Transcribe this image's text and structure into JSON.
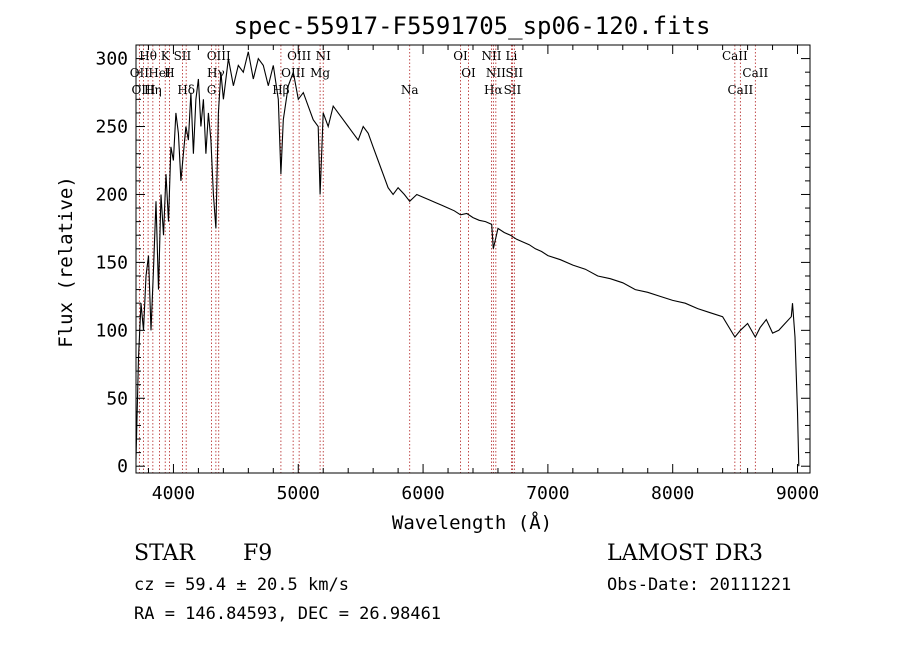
{
  "chart_data": {
    "type": "line",
    "title": "spec-55917-F5591705_sp06-120.fits",
    "xlabel": "Wavelength (Å)",
    "ylabel": "Flux (relative)",
    "xlim": [
      3700,
      9100
    ],
    "ylim": [
      -5,
      310
    ],
    "x_ticks": [
      4000,
      5000,
      6000,
      7000,
      8000,
      9000
    ],
    "y_ticks": [
      0,
      50,
      100,
      150,
      200,
      250,
      300
    ],
    "x_tick_labels": [
      "4000",
      "5000",
      "6000",
      "7000",
      "8000",
      "9000"
    ],
    "y_tick_labels": [
      "0",
      "50",
      "100",
      "150",
      "200",
      "250",
      "300"
    ],
    "series": [
      {
        "name": "flux",
        "x": [
          3700,
          3720,
          3740,
          3760,
          3780,
          3800,
          3820,
          3840,
          3860,
          3880,
          3900,
          3920,
          3940,
          3960,
          3980,
          4000,
          4020,
          4040,
          4060,
          4080,
          4100,
          4120,
          4140,
          4160,
          4180,
          4200,
          4220,
          4240,
          4260,
          4280,
          4300,
          4320,
          4340,
          4360,
          4380,
          4400,
          4440,
          4480,
          4520,
          4560,
          4600,
          4640,
          4680,
          4720,
          4760,
          4800,
          4840,
          4861,
          4880,
          4920,
          4960,
          5000,
          5040,
          5080,
          5120,
          5160,
          5175,
          5200,
          5240,
          5280,
          5320,
          5360,
          5400,
          5440,
          5480,
          5520,
          5560,
          5600,
          5640,
          5680,
          5720,
          5760,
          5800,
          5850,
          5893,
          5950,
          6000,
          6050,
          6100,
          6150,
          6200,
          6250,
          6300,
          6350,
          6400,
          6450,
          6500,
          6550,
          6563,
          6600,
          6650,
          6700,
          6750,
          6800,
          6850,
          6900,
          6950,
          7000,
          7100,
          7200,
          7300,
          7400,
          7500,
          7600,
          7700,
          7800,
          7900,
          8000,
          8100,
          8200,
          8300,
          8400,
          8498,
          8542,
          8600,
          8662,
          8700,
          8750,
          8800,
          8850,
          8900,
          8950,
          8960,
          8980,
          9000,
          9010
        ],
        "y": [
          5,
          80,
          120,
          100,
          140,
          155,
          100,
          145,
          195,
          130,
          200,
          170,
          215,
          180,
          235,
          225,
          260,
          245,
          210,
          230,
          250,
          240,
          275,
          230,
          270,
          285,
          250,
          270,
          230,
          260,
          240,
          200,
          175,
          260,
          290,
          270,
          300,
          280,
          295,
          290,
          305,
          285,
          300,
          295,
          280,
          295,
          270,
          215,
          255,
          280,
          290,
          270,
          275,
          265,
          255,
          250,
          200,
          260,
          250,
          265,
          260,
          255,
          250,
          245,
          240,
          250,
          245,
          235,
          225,
          215,
          205,
          200,
          205,
          200,
          195,
          200,
          198,
          196,
          194,
          192,
          190,
          188,
          185,
          186,
          183,
          181,
          180,
          178,
          160,
          175,
          172,
          170,
          167,
          165,
          163,
          160,
          158,
          155,
          152,
          148,
          145,
          140,
          138,
          135,
          130,
          128,
          125,
          122,
          120,
          116,
          113,
          110,
          95,
          100,
          105,
          95,
          102,
          108,
          98,
          100,
          105,
          110,
          120,
          95,
          40,
          0
        ]
      }
    ],
    "spectral_lines": [
      {
        "label": "Hθ",
        "wavelength": 3797
      },
      {
        "label": "OII",
        "wavelength": 3727
      },
      {
        "label": "OIII",
        "wavelength": 3760
      },
      {
        "label": "K",
        "wavelength": 3934
      },
      {
        "label": "HeI",
        "wavelength": 3889
      },
      {
        "label": "Hη",
        "wavelength": 3835
      },
      {
        "label": "SII",
        "wavelength": 4072
      },
      {
        "label": "H",
        "wavelength": 3968
      },
      {
        "label": "Hδ",
        "wavelength": 4102
      },
      {
        "label": "OIII",
        "wavelength": 4363
      },
      {
        "label": "Hγ",
        "wavelength": 4340
      },
      {
        "label": "G",
        "wavelength": 4305
      },
      {
        "label": "OIII",
        "wavelength": 5007
      },
      {
        "label": "OIII",
        "wavelength": 4959
      },
      {
        "label": "Hβ",
        "wavelength": 4861
      },
      {
        "label": "NI",
        "wavelength": 5200
      },
      {
        "label": "Mg",
        "wavelength": 5175
      },
      {
        "label": "Na",
        "wavelength": 5893
      },
      {
        "label": "OI",
        "wavelength": 6300
      },
      {
        "label": "OI",
        "wavelength": 6364
      },
      {
        "label": "Hα",
        "wavelength": 6563
      },
      {
        "label": "NII",
        "wavelength": 6548
      },
      {
        "label": "NII",
        "wavelength": 6583
      },
      {
        "label": "SII",
        "wavelength": 6716
      },
      {
        "label": "Li",
        "wavelength": 6708
      },
      {
        "label": "SII",
        "wavelength": 6731
      },
      {
        "label": "CaII",
        "wavelength": 8542
      },
      {
        "label": "CaII",
        "wavelength": 8498
      },
      {
        "label": "CaII",
        "wavelength": 8662
      }
    ]
  },
  "footer": {
    "class_label": "STAR",
    "subclass": "F9",
    "survey": "LAMOST DR3",
    "velocity": "cz = 59.4 ± 20.5 km/s",
    "obs_date": "Obs-Date: 20111221",
    "coords": "RA = 146.84593, DEC =  26.98461"
  },
  "colors": {
    "spectrum": "#000000",
    "line_marker": "#b22222"
  }
}
